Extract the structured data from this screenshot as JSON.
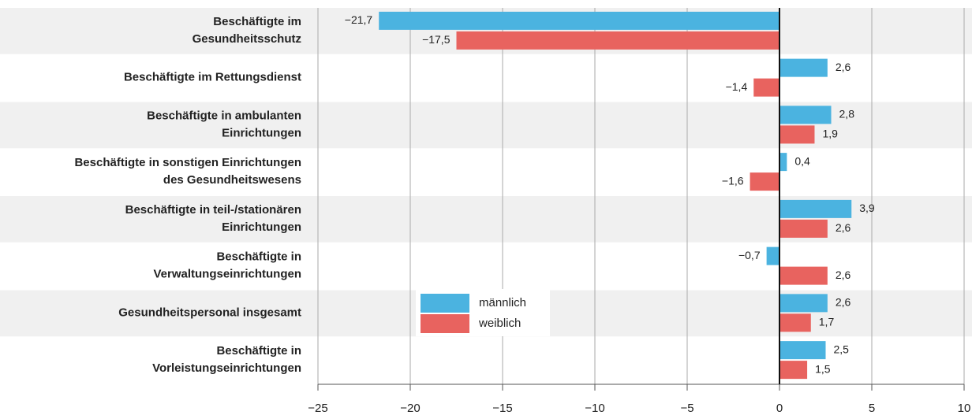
{
  "chart_data": {
    "type": "bar",
    "orientation": "horizontal",
    "categories": [
      [
        "Beschäftigte im",
        "Gesundheitsschutz"
      ],
      [
        "Beschäftigte im Rettungsdienst"
      ],
      [
        "Beschäftigte in ambulanten",
        "Einrichtungen"
      ],
      [
        "Beschäftigte in sonstigen Einrichtungen",
        "des Gesundheitswesens"
      ],
      [
        "Beschäftigte in teil-/stationären",
        "Einrichtungen"
      ],
      [
        "Beschäftigte in",
        "Verwaltungseinrichtungen"
      ],
      [
        "Gesundheitspersonal insgesamt"
      ],
      [
        "Beschäftigte in",
        "Vorleistungseinrichtungen"
      ]
    ],
    "series": [
      {
        "name": "männlich",
        "color": "#4bb3e0",
        "values": [
          -21.7,
          2.6,
          2.8,
          0.4,
          3.9,
          -0.7,
          2.6,
          2.5
        ],
        "value_labels": [
          "−21,7",
          "2,6",
          "2,8",
          "0,4",
          "3,9",
          "−0,7",
          "2,6",
          "2,5"
        ]
      },
      {
        "name": "weiblich",
        "color": "#e8635f",
        "values": [
          -17.5,
          -1.4,
          1.9,
          -1.6,
          2.6,
          2.6,
          1.7,
          1.5
        ],
        "value_labels": [
          "−17,5",
          "−1,4",
          "1,9",
          "−1,6",
          "2,6",
          "2,6",
          "1,7",
          "1,5"
        ]
      }
    ],
    "xlim": [
      -25,
      10
    ],
    "xticks": [
      {
        "value": -25,
        "label": "−25"
      },
      {
        "value": -20,
        "label": "−20"
      },
      {
        "value": -15,
        "label": "−15"
      },
      {
        "value": -10,
        "label": "−10"
      },
      {
        "value": -5,
        "label": "−5"
      },
      0,
      5,
      10
    ],
    "grid": true
  }
}
